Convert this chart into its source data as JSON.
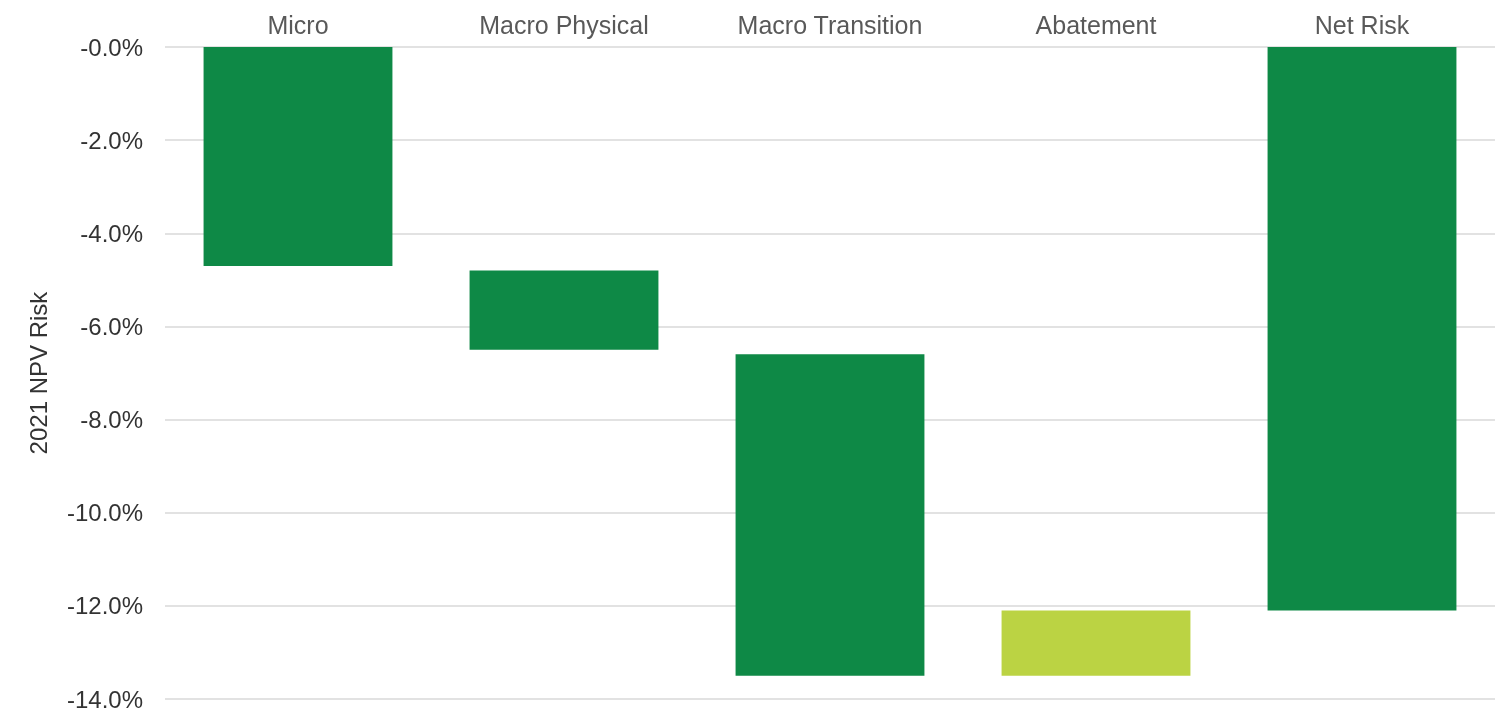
{
  "chart_data": {
    "type": "bar",
    "ylabel": "2021 NPV Risk",
    "categories": [
      "Micro",
      "Macro Physical",
      "Macro Transition",
      "Abatement",
      "Net Risk"
    ],
    "base": [
      0,
      -4.8,
      -6.6,
      -13.5,
      0
    ],
    "values": [
      -4.7,
      -1.7,
      -6.9,
      1.4,
      -12.1
    ],
    "colors": [
      "#0e8946",
      "#0e8946",
      "#0e8946",
      "#bbd343",
      "#0e8946"
    ],
    "ylim": [
      -14,
      0
    ],
    "yticks": [
      {
        "value": 0,
        "label": "-0.0%"
      },
      {
        "value": -2,
        "label": "-2.0%"
      },
      {
        "value": -4,
        "label": "-4.0%"
      },
      {
        "value": -6,
        "label": "-6.0%"
      },
      {
        "value": -8,
        "label": "-8.0%"
      },
      {
        "value": -10,
        "label": "-10.0%"
      },
      {
        "value": -12,
        "label": "-12.0%"
      },
      {
        "value": -14,
        "label": "-14.0%"
      }
    ],
    "grid": "y"
  }
}
